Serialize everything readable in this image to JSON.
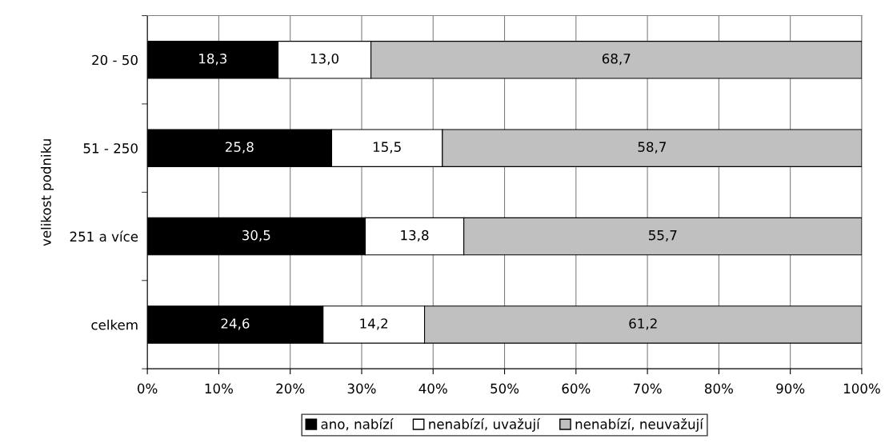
{
  "chart_data": {
    "type": "bar",
    "orientation": "horizontal",
    "stacked": true,
    "ylabel": "velikost podniku",
    "categories": [
      "20 - 50",
      "51 - 250",
      "251 a více",
      "celkem"
    ],
    "series": [
      {
        "name": "ano, nabízí",
        "color": "#000000",
        "values": [
          18.3,
          25.8,
          30.5,
          24.6
        ],
        "value_labels": [
          "18,3",
          "25,8",
          "30,5",
          "24,6"
        ]
      },
      {
        "name": "nenabízí, uvažují",
        "color": "#ffffff",
        "values": [
          13.0,
          15.5,
          13.8,
          14.2
        ],
        "value_labels": [
          "13,0",
          "15,5",
          "13,8",
          "14,2"
        ]
      },
      {
        "name": "nenabízí, neuvažují",
        "color": "#c0c0c0",
        "values": [
          68.7,
          58.7,
          55.7,
          61.2
        ],
        "value_labels": [
          "68,7",
          "58,7",
          "55,7",
          "61,2"
        ]
      }
    ],
    "xlim": [
      0,
      100
    ],
    "xticks": [
      {
        "value": 0,
        "label": "0%"
      },
      {
        "value": 10,
        "label": "10%"
      },
      {
        "value": 20,
        "label": "20%"
      },
      {
        "value": 30,
        "label": "30%"
      },
      {
        "value": 40,
        "label": "40%"
      },
      {
        "value": 50,
        "label": "50%"
      },
      {
        "value": 60,
        "label": "60%"
      },
      {
        "value": 70,
        "label": "70%"
      },
      {
        "value": 80,
        "label": "80%"
      },
      {
        "value": 90,
        "label": "90%"
      },
      {
        "value": 100,
        "label": "100%"
      }
    ],
    "grid": "x",
    "legend": "bottom"
  }
}
